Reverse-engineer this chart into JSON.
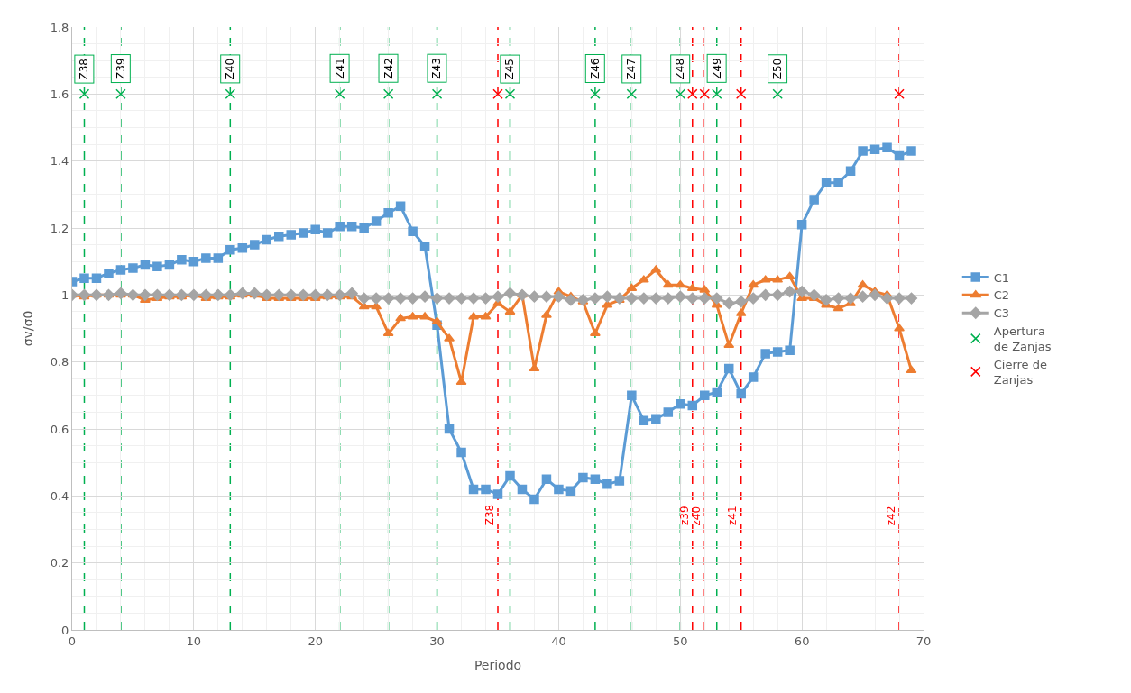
{
  "chart_data": {
    "type": "line",
    "xlabel": "Periodo",
    "ylabel": "σv/σ0",
    "x": [
      0,
      1,
      2,
      3,
      4,
      5,
      6,
      7,
      8,
      9,
      10,
      11,
      12,
      13,
      14,
      15,
      16,
      17,
      18,
      19,
      20,
      21,
      22,
      23,
      24,
      25,
      26,
      27,
      28,
      29,
      30,
      31,
      32,
      33,
      34,
      35,
      36,
      37,
      38,
      39,
      40,
      41,
      42,
      43,
      44,
      45,
      46,
      47,
      48,
      49,
      50,
      51,
      52,
      53,
      54,
      55,
      56,
      57,
      58,
      59,
      60,
      61,
      62,
      63,
      64,
      65,
      66,
      67,
      68,
      69
    ],
    "series": [
      {
        "name": "C1",
        "color": "#5b9bd5",
        "marker": "square",
        "values": [
          1.04,
          1.05,
          1.05,
          1.065,
          1.075,
          1.08,
          1.09,
          1.085,
          1.09,
          1.105,
          1.1,
          1.11,
          1.11,
          1.135,
          1.14,
          1.15,
          1.165,
          1.175,
          1.18,
          1.185,
          1.195,
          1.185,
          1.205,
          1.205,
          1.2,
          1.22,
          1.245,
          1.265,
          1.19,
          1.145,
          0.91,
          0.6,
          0.53,
          0.42,
          0.42,
          0.405,
          0.46,
          0.42,
          0.39,
          0.45,
          0.42,
          0.415,
          0.455,
          0.45,
          0.435,
          0.445,
          0.7,
          0.625,
          0.63,
          0.65,
          0.675,
          0.67,
          0.7,
          0.71,
          0.78,
          0.705,
          0.755,
          0.825,
          0.83,
          0.835,
          1.21,
          1.285,
          1.335,
          1.335,
          1.37,
          1.43,
          1.435,
          1.44,
          1.415,
          1.43
        ]
      },
      {
        "name": "C2",
        "color": "#ed7d31",
        "marker": "triangle",
        "values": [
          1.0,
          0.995,
          1.0,
          1.0,
          1.0,
          1.0,
          0.985,
          0.99,
          0.995,
          0.995,
          1.0,
          0.99,
          0.995,
          0.995,
          1.0,
          1.0,
          0.99,
          0.99,
          0.99,
          0.99,
          0.99,
          0.995,
          0.995,
          0.995,
          0.965,
          0.965,
          0.885,
          0.93,
          0.935,
          0.935,
          0.92,
          0.87,
          0.74,
          0.935,
          0.935,
          0.975,
          0.95,
          1.0,
          0.78,
          0.94,
          1.01,
          0.995,
          0.98,
          0.885,
          0.97,
          0.985,
          1.02,
          1.045,
          1.075,
          1.03,
          1.03,
          1.02,
          1.015,
          0.97,
          0.85,
          0.945,
          1.03,
          1.045,
          1.045,
          1.055,
          0.99,
          0.99,
          0.97,
          0.96,
          0.975,
          1.03,
          1.01,
          1.0,
          0.9,
          0.775
        ]
      },
      {
        "name": "C3",
        "color": "#a5a5a5",
        "marker": "diamond",
        "values": [
          1.0,
          1.0,
          1.0,
          1.0,
          1.005,
          1.0,
          1.0,
          1.0,
          1.0,
          1.0,
          1.0,
          1.0,
          1.0,
          1.0,
          1.005,
          1.005,
          1.0,
          1.0,
          1.0,
          1.0,
          1.0,
          1.0,
          1.0,
          1.005,
          0.99,
          0.99,
          0.99,
          0.99,
          0.99,
          0.995,
          0.99,
          0.99,
          0.99,
          0.99,
          0.99,
          0.995,
          1.005,
          1.0,
          0.995,
          0.995,
          0.995,
          0.985,
          0.985,
          0.99,
          0.995,
          0.99,
          0.99,
          0.99,
          0.99,
          0.99,
          0.995,
          0.99,
          0.99,
          0.99,
          0.975,
          0.98,
          0.99,
          1.0,
          1.0,
          1.01,
          1.01,
          1.0,
          0.985,
          0.99,
          0.99,
          0.995,
          1.0,
          0.99,
          0.99,
          0.99
        ]
      },
      {
        "name": "Apertura de Zanjas",
        "type": "scatter",
        "color": "#00b050",
        "marker": "cross",
        "x": [
          1,
          4,
          13,
          22,
          26,
          30,
          36,
          43,
          46,
          50,
          53,
          58
        ],
        "values": [
          1.6,
          1.6,
          1.6,
          1.6,
          1.6,
          1.6,
          1.6,
          1.6,
          1.6,
          1.6,
          1.6,
          1.6
        ]
      },
      {
        "name": "Cierre de Zanjas",
        "type": "scatter",
        "color": "#ff0000",
        "marker": "cross",
        "x": [
          35,
          51,
          52,
          55,
          68
        ],
        "values": [
          1.6,
          1.6,
          1.6,
          1.6,
          1.6
        ]
      }
    ],
    "ref_lines": [
      {
        "axis": "x",
        "value": 1,
        "label": "Z38",
        "color": "#00b050",
        "line_style": "dashed"
      },
      {
        "axis": "x",
        "value": 4,
        "label": "Z39",
        "color": "#00b050",
        "line_style": "dashed"
      },
      {
        "axis": "x",
        "value": 13,
        "label": "Z40",
        "color": "#00b050",
        "line_style": "dashed"
      },
      {
        "axis": "x",
        "value": 22,
        "label": "Z41",
        "color": "#00b050",
        "line_style": "dashed"
      },
      {
        "axis": "x",
        "value": 26,
        "label": "Z42",
        "color": "#00b050",
        "line_style": "dashed"
      },
      {
        "axis": "x",
        "value": 30,
        "label": "Z43",
        "color": "#00b050",
        "line_style": "dashed"
      },
      {
        "axis": "x",
        "value": 36,
        "label": "Z45",
        "color": "#00b050",
        "line_style": "dashed"
      },
      {
        "axis": "x",
        "value": 43,
        "label": "Z46",
        "color": "#00b050",
        "line_style": "dashed"
      },
      {
        "axis": "x",
        "value": 46,
        "label": "Z47",
        "color": "#00b050",
        "line_style": "dashed"
      },
      {
        "axis": "x",
        "value": 50,
        "label": "Z48",
        "color": "#00b050",
        "line_style": "dashed"
      },
      {
        "axis": "x",
        "value": 53,
        "label": "Z49",
        "color": "#00b050",
        "line_style": "dashed"
      },
      {
        "axis": "x",
        "value": 58,
        "label": "Z50",
        "color": "#00b050",
        "line_style": "dashed"
      },
      {
        "axis": "x",
        "value": 35,
        "label": "Z38",
        "color": "#ff0000",
        "line_style": "dashed"
      },
      {
        "axis": "x",
        "value": 51,
        "label": "z39",
        "color": "#ff0000",
        "line_style": "dashed"
      },
      {
        "axis": "x",
        "value": 52,
        "label": "z40",
        "color": "#ff0000",
        "line_style": "dashed"
      },
      {
        "axis": "x",
        "value": 55,
        "label": "z41",
        "color": "#ff0000",
        "line_style": "dashed"
      },
      {
        "axis": "x",
        "value": 68,
        "label": "z42",
        "color": "#ff0000",
        "line_style": "dashed"
      }
    ],
    "xlim": [
      0,
      70
    ],
    "xticks": [
      0,
      10,
      20,
      30,
      40,
      50,
      60,
      70
    ],
    "ylim": [
      0,
      1.8
    ],
    "yticks": [
      0,
      0.2,
      0.4,
      0.6,
      0.8,
      1,
      1.2,
      1.4,
      1.6,
      1.8
    ],
    "grid": true,
    "legend": "right",
    "line_style": "solid"
  }
}
